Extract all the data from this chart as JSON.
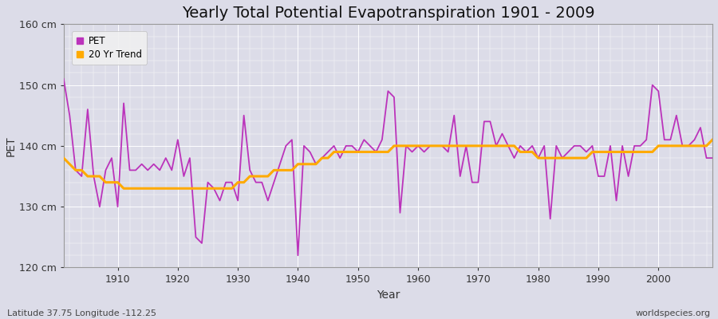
{
  "title": "Yearly Total Potential Evapotranspiration 1901 - 2009",
  "xlabel": "Year",
  "ylabel": "PET",
  "years": [
    1901,
    1902,
    1903,
    1904,
    1905,
    1906,
    1907,
    1908,
    1909,
    1910,
    1911,
    1912,
    1913,
    1914,
    1915,
    1916,
    1917,
    1918,
    1919,
    1920,
    1921,
    1922,
    1923,
    1924,
    1925,
    1926,
    1927,
    1928,
    1929,
    1930,
    1931,
    1932,
    1933,
    1934,
    1935,
    1936,
    1937,
    1938,
    1939,
    1940,
    1941,
    1942,
    1943,
    1944,
    1945,
    1946,
    1947,
    1948,
    1949,
    1950,
    1951,
    1952,
    1953,
    1954,
    1955,
    1956,
    1957,
    1958,
    1959,
    1960,
    1961,
    1962,
    1963,
    1964,
    1965,
    1966,
    1967,
    1968,
    1969,
    1970,
    1971,
    1972,
    1973,
    1974,
    1975,
    1976,
    1977,
    1978,
    1979,
    1980,
    1981,
    1982,
    1983,
    1984,
    1985,
    1986,
    1987,
    1988,
    1989,
    1990,
    1991,
    1992,
    1993,
    1994,
    1995,
    1996,
    1997,
    1998,
    1999,
    2000,
    2001,
    2002,
    2003,
    2004,
    2005,
    2006,
    2007,
    2008,
    2009
  ],
  "pet": [
    151,
    145,
    136,
    135,
    146,
    135,
    130,
    136,
    138,
    130,
    147,
    136,
    136,
    137,
    136,
    137,
    136,
    138,
    136,
    141,
    135,
    138,
    125,
    124,
    134,
    133,
    131,
    134,
    134,
    131,
    145,
    136,
    134,
    134,
    131,
    134,
    137,
    140,
    141,
    122,
    140,
    139,
    137,
    138,
    139,
    140,
    138,
    140,
    140,
    139,
    141,
    140,
    139,
    141,
    149,
    148,
    129,
    140,
    139,
    140,
    139,
    140,
    140,
    140,
    139,
    145,
    135,
    140,
    134,
    134,
    144,
    144,
    140,
    142,
    140,
    138,
    140,
    139,
    140,
    138,
    140,
    128,
    140,
    138,
    139,
    140,
    140,
    139,
    140,
    135,
    135,
    140,
    131,
    140,
    135,
    140,
    140,
    141,
    150,
    149,
    141,
    141,
    145,
    140,
    140,
    141,
    143,
    138,
    138
  ],
  "trend_years": [
    1901,
    1902,
    1903,
    1904,
    1905,
    1906,
    1907,
    1908,
    1909,
    1910,
    1911,
    1912,
    1913,
    1914,
    1915,
    1916,
    1917,
    1918,
    1919,
    1920,
    1921,
    1922,
    1923,
    1924,
    1925,
    1926,
    1927,
    1928,
    1929,
    1930,
    1931,
    1932,
    1933,
    1934,
    1935,
    1936,
    1937,
    1938,
    1939,
    1940,
    1941,
    1942,
    1943,
    1944,
    1945,
    1946,
    1947,
    1948,
    1949,
    1950,
    1951,
    1952,
    1953,
    1954,
    1955,
    1956,
    1957,
    1958,
    1959,
    1960,
    1961,
    1962,
    1963,
    1964,
    1965,
    1966,
    1967,
    1968,
    1969,
    1970,
    1971,
    1972,
    1973,
    1974,
    1975,
    1976,
    1977,
    1978,
    1979,
    1980,
    1981,
    1982,
    1983,
    1984,
    1985,
    1986,
    1987,
    1988,
    1989,
    1990,
    1991,
    1992,
    1993,
    1994,
    1995,
    1996,
    1997,
    1998,
    1999,
    2000,
    2001,
    2002,
    2003,
    2004,
    2005,
    2006,
    2007,
    2008,
    2009
  ],
  "trend": [
    138,
    137,
    136,
    136,
    135,
    135,
    135,
    134,
    134,
    134,
    133,
    133,
    133,
    133,
    133,
    133,
    133,
    133,
    133,
    133,
    133,
    133,
    133,
    133,
    133,
    133,
    133,
    133,
    133,
    134,
    134,
    135,
    135,
    135,
    135,
    136,
    136,
    136,
    136,
    137,
    137,
    137,
    137,
    138,
    138,
    139,
    139,
    139,
    139,
    139,
    139,
    139,
    139,
    139,
    139,
    140,
    140,
    140,
    140,
    140,
    140,
    140,
    140,
    140,
    140,
    140,
    140,
    140,
    140,
    140,
    140,
    140,
    140,
    140,
    140,
    140,
    139,
    139,
    139,
    138,
    138,
    138,
    138,
    138,
    138,
    138,
    138,
    138,
    139,
    139,
    139,
    139,
    139,
    139,
    139,
    139,
    139,
    139,
    139,
    140,
    140,
    140,
    140,
    140,
    140,
    140,
    140,
    140,
    141
  ],
  "pet_color": "#bb33bb",
  "trend_color": "#ffaa00",
  "bg_color": "#dcdce8",
  "plot_bg_color": "#dcdce8",
  "grid_major_color": "#ffffff",
  "grid_minor_color": "#ffffff",
  "ylim": [
    120,
    160
  ],
  "yticks": [
    120,
    130,
    140,
    150,
    160
  ],
  "ytick_labels": [
    "120 cm",
    "130 cm",
    "140 cm",
    "150 cm",
    "160 cm"
  ],
  "xlim": [
    1901,
    2009
  ],
  "xticks": [
    1910,
    1920,
    1930,
    1940,
    1950,
    1960,
    1970,
    1980,
    1990,
    2000
  ],
  "footer_left": "Latitude 37.75 Longitude -112.25",
  "footer_right": "worldspecies.org",
  "legend_pet": "PET",
  "legend_trend": "20 Yr Trend",
  "pet_linewidth": 1.3,
  "trend_linewidth": 2.2,
  "title_fontsize": 14,
  "axis_label_fontsize": 10,
  "tick_fontsize": 9,
  "footer_fontsize": 8
}
